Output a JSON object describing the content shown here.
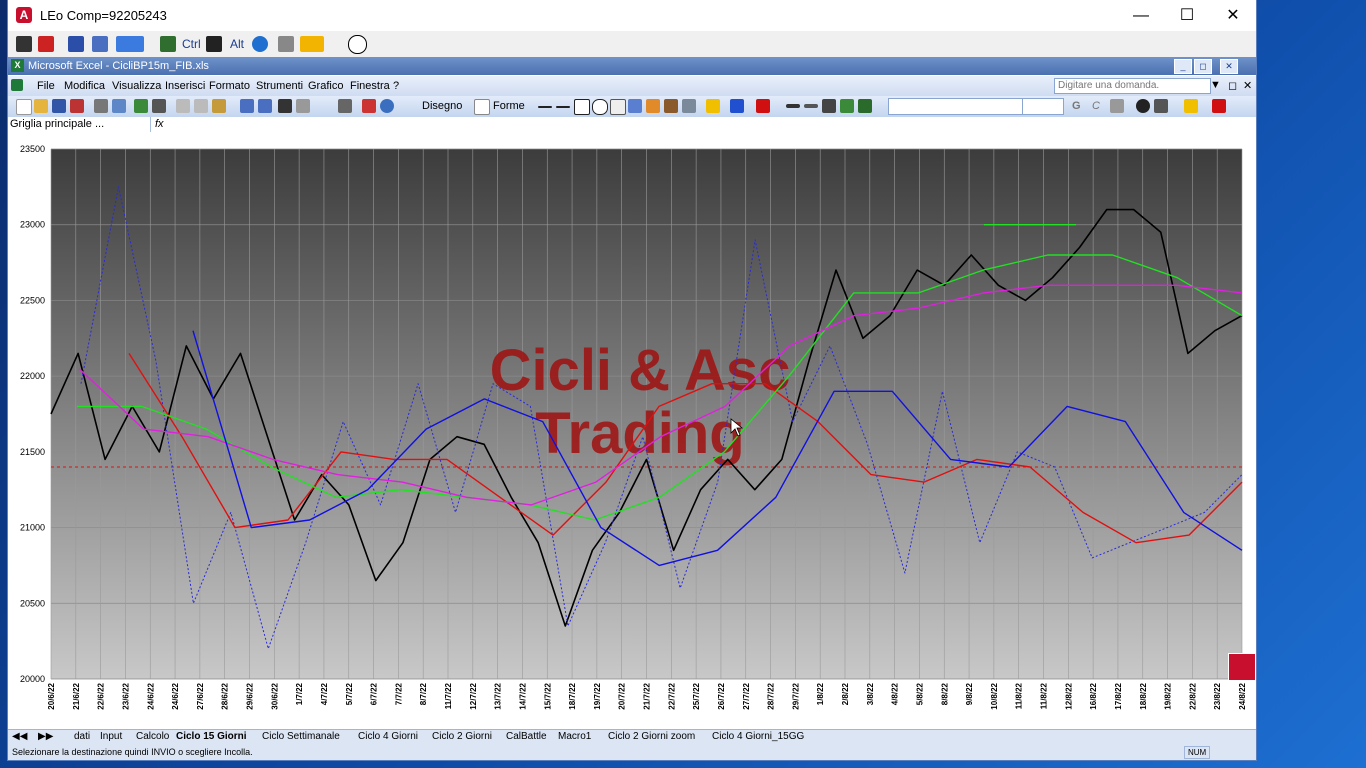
{
  "window": {
    "title": "LEo Comp=92205243",
    "app_icon": "leo-app-icon"
  },
  "toolbar_top": {
    "ctrl_label": "Ctrl",
    "alt_label": "Alt"
  },
  "excel": {
    "title": "Microsoft Excel - CicliBP15m_FIB.xls",
    "menu": [
      "File",
      "Modifica",
      "Visualizza",
      "Inserisci",
      "Formato",
      "Strumenti",
      "Grafico",
      "Finestra",
      "?"
    ],
    "ask_placeholder": "Digitare una domanda.",
    "draw_label": "Disegno",
    "shapes_label": "Forme",
    "bold_label": "G",
    "italic_label": "C",
    "name_box": "Griglia principale ...",
    "fx_label": "fx"
  },
  "sheet_tabs": [
    "dati",
    "Input",
    "Calcolo",
    "Ciclo 15 Giorni",
    "Ciclo Settimanale",
    "Ciclo 4 Giorni",
    "Ciclo 2 Giorni",
    "CalBattle",
    "Macro1",
    "Ciclo 2 Giorni zoom",
    "Ciclo 4 Giorni_15GG"
  ],
  "active_tab": "Ciclo 15 Giorni",
  "status": {
    "message": "Selezionare la destinazione quindi INVIO o scegliere Incolla.",
    "num": "NUM"
  },
  "colors": {
    "black": "#000000",
    "blue_dotted": "#2a2ad8",
    "red": "#e01010",
    "green": "#22e022",
    "magenta": "#e020e0",
    "blue": "#1010e0",
    "ref_line": "#e01010"
  },
  "chart_data": {
    "type": "line",
    "watermark": [
      "Cicli & Asc",
      "Trading"
    ],
    "y_ticks": [
      20000,
      20500,
      21000,
      21500,
      22000,
      22500,
      23000,
      23500
    ],
    "ylim": [
      20000,
      23500
    ],
    "x_tick_labels": [
      "20/6/22",
      "21/6/22",
      "22/6/22",
      "23/6/22",
      "24/6/22",
      "24/6/22",
      "27/6/22",
      "28/6/22",
      "29/6/22",
      "30/6/22",
      "1/7/22",
      "4/7/22",
      "5/7/22",
      "6/7/22",
      "7/7/22",
      "8/7/22",
      "11/7/22",
      "12/7/22",
      "13/7/22",
      "14/7/22",
      "15/7/22",
      "18/7/22",
      "19/7/22",
      "20/7/22",
      "21/7/22",
      "22/7/22",
      "25/7/22",
      "26/7/22",
      "27/7/22",
      "28/7/22",
      "29/7/22",
      "1/8/22",
      "2/8/22",
      "3/8/22",
      "4/8/22",
      "5/8/22",
      "8/8/22",
      "9/8/22",
      "10/8/22",
      "11/8/22",
      "11/8/22",
      "12/8/22",
      "16/8/22",
      "17/8/22",
      "18/8/22",
      "19/8/22",
      "22/8/22",
      "23/8/22",
      "24/8/22"
    ],
    "reference_line": 21400,
    "series": [
      {
        "key": "price",
        "style": "solid",
        "width": 1.6,
        "color": "#000000",
        "values": [
          21750,
          22150,
          21450,
          21800,
          21500,
          22200,
          21850,
          22150,
          21600,
          21050,
          21350,
          21150,
          20650,
          20900,
          21450,
          21600,
          21550,
          21200,
          20900,
          20350,
          20850,
          21100,
          21450,
          20850,
          21250,
          21450,
          21250,
          21450,
          22100,
          22700,
          22250,
          22400,
          22700,
          22600,
          22800,
          22600,
          22500,
          22650,
          22850,
          23100,
          23100,
          22950,
          22150,
          22300,
          22400
        ]
      },
      {
        "key": "cycle_dotted",
        "style": "dotted",
        "width": 1.0,
        "color": "#2a2ad8",
        "values": [
          21950,
          23250,
          22100,
          20500,
          21100,
          20200,
          20900,
          21700,
          21150,
          21950,
          21100,
          21950,
          21800,
          20350,
          20900,
          21600,
          20600,
          21300,
          22900,
          21700,
          22200,
          21550,
          20700,
          21900,
          20900,
          21500,
          21400,
          20800,
          20900,
          21000,
          21100,
          21350
        ]
      },
      {
        "key": "red",
        "style": "solid",
        "width": 1.4,
        "color": "#e01010",
        "values": [
          22150,
          21600,
          21000,
          21050,
          21500,
          21450,
          21450,
          21200,
          20950,
          21300,
          21800,
          21950,
          21950,
          21700,
          21350,
          21300,
          21450,
          21400,
          21100,
          20900,
          20950,
          21300
        ]
      },
      {
        "key": "green",
        "style": "solid",
        "width": 1.4,
        "color": "#22e022",
        "values": [
          21800,
          21800,
          21650,
          21400,
          21200,
          21250,
          21200,
          21150,
          21050,
          21200,
          21500,
          22000,
          22550,
          22550,
          22700,
          22800,
          22800,
          22650,
          22400
        ]
      },
      {
        "key": "magenta",
        "style": "solid",
        "width": 1.4,
        "color": "#e020e0",
        "values": [
          22050,
          21650,
          21600,
          21450,
          21350,
          21300,
          21200,
          21150,
          21300,
          21600,
          21800,
          22200,
          22400,
          22450,
          22550,
          22600,
          22600,
          22600,
          22550
        ]
      },
      {
        "key": "blue",
        "style": "solid",
        "width": 1.4,
        "color": "#1010e0",
        "values": [
          22300,
          21000,
          21050,
          21250,
          21650,
          21850,
          21700,
          21000,
          20750,
          20850,
          21200,
          21900,
          21900,
          21450,
          21400,
          21800,
          21700,
          21100,
          20850
        ]
      },
      {
        "key": "green_flat",
        "style": "solid",
        "width": 1.4,
        "color": "#22e022",
        "values": [
          23000,
          23000
        ]
      }
    ]
  }
}
